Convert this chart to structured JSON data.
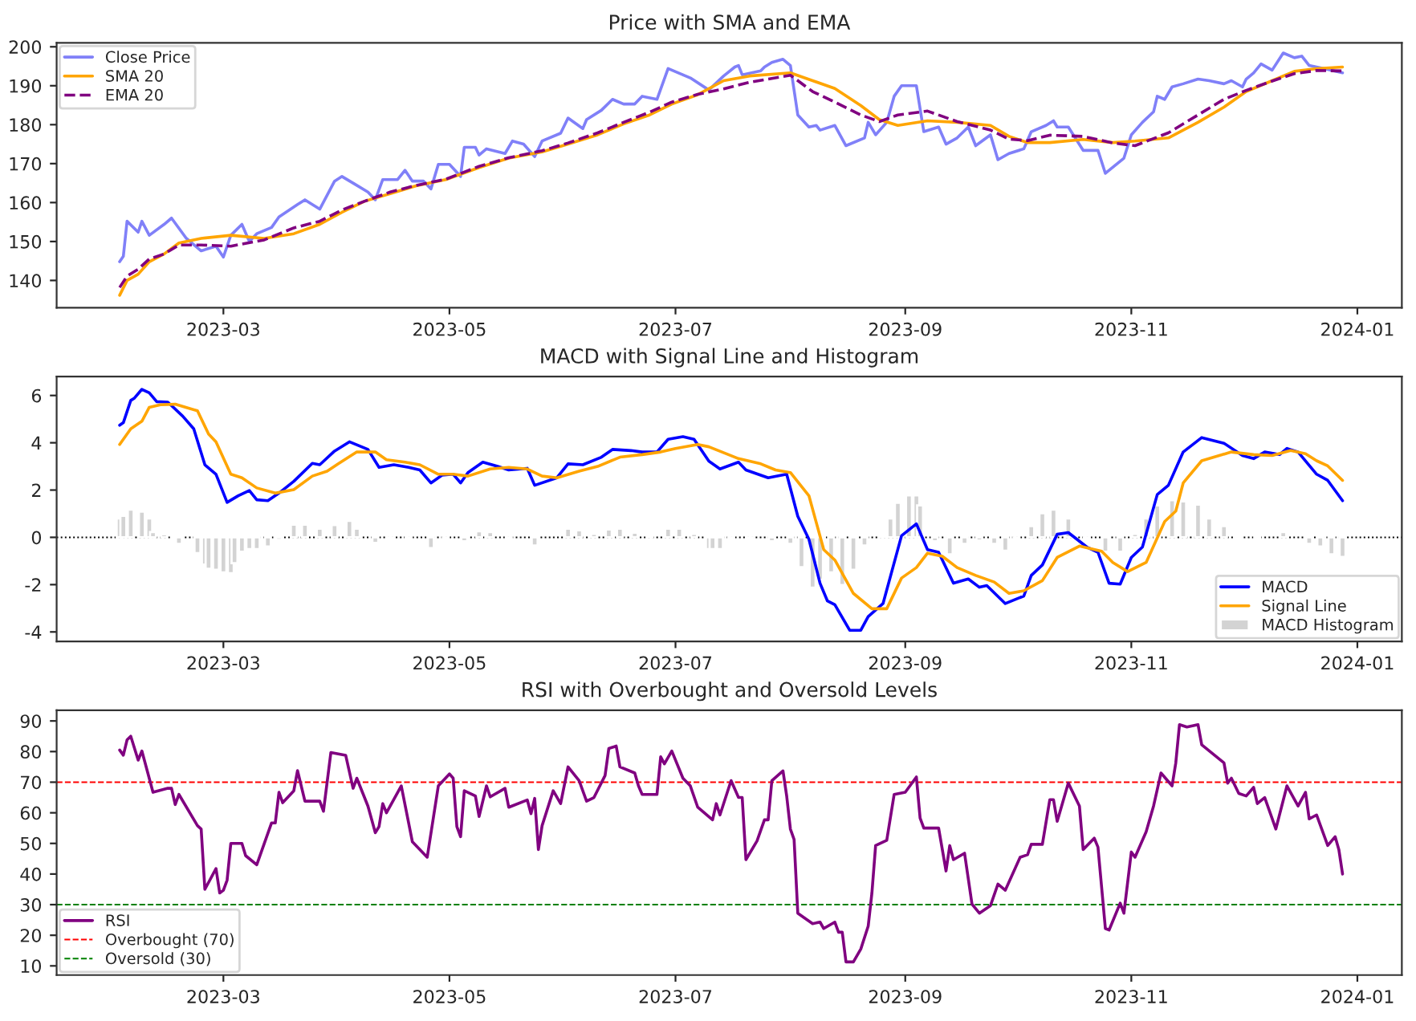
{
  "chart_data": [
    {
      "type": "line",
      "title": "Price with SMA and EMA",
      "legend": "top left",
      "grid": false,
      "xlim": [
        "2023-01-15",
        "2024-01-13"
      ],
      "xticks": [
        {
          "value": "2023-03-01",
          "label": "2023-03"
        },
        {
          "value": "2023-05-01",
          "label": "2023-05"
        },
        {
          "value": "2023-07-01",
          "label": "2023-07"
        },
        {
          "value": "2023-09-01",
          "label": "2023-09"
        },
        {
          "value": "2023-11-01",
          "label": "2023-11"
        },
        {
          "value": "2024-01-01",
          "label": "2024-01"
        }
      ],
      "ylim": [
        133,
        201
      ],
      "yticks": [
        140,
        150,
        160,
        170,
        180,
        190,
        200
      ],
      "series": [
        {
          "name": "Close Price",
          "color": "#8080f8",
          "line_style": "solid",
          "x": [
            "2023-02-01",
            "2023-02-02",
            "2023-02-03",
            "2023-02-06",
            "2023-02-07",
            "2023-02-09",
            "2023-02-13",
            "2023-02-15",
            "2023-02-19",
            "2023-02-23",
            "2023-02-27",
            "2023-03-01",
            "2023-03-03",
            "2023-03-06",
            "2023-03-08",
            "2023-03-10",
            "2023-03-14",
            "2023-03-16",
            "2023-03-21",
            "2023-03-23",
            "2023-03-27",
            "2023-03-31",
            "2023-04-02",
            "2023-04-05",
            "2023-04-09",
            "2023-04-11",
            "2023-04-13",
            "2023-04-17",
            "2023-04-19",
            "2023-04-21",
            "2023-04-24",
            "2023-04-26",
            "2023-04-28",
            "2023-05-01",
            "2023-05-04",
            "2023-05-05",
            "2023-05-08",
            "2023-05-09",
            "2023-05-11",
            "2023-05-16",
            "2023-05-18",
            "2023-05-21",
            "2023-05-24",
            "2023-05-26",
            "2023-05-31",
            "2023-06-02",
            "2023-06-06",
            "2023-06-07",
            "2023-06-11",
            "2023-06-14",
            "2023-06-17",
            "2023-06-20",
            "2023-06-22",
            "2023-06-26",
            "2023-06-29",
            "2023-07-05",
            "2023-07-10",
            "2023-07-14",
            "2023-07-17",
            "2023-07-18",
            "2023-07-19",
            "2023-07-24",
            "2023-07-25",
            "2023-07-27",
            "2023-07-30",
            "2023-08-01",
            "2023-08-03",
            "2023-08-06",
            "2023-08-08",
            "2023-08-09",
            "2023-08-13",
            "2023-08-16",
            "2023-08-21",
            "2023-08-22",
            "2023-08-24",
            "2023-08-27",
            "2023-08-29",
            "2023-08-31",
            "2023-09-04",
            "2023-09-06",
            "2023-09-10",
            "2023-09-12",
            "2023-09-15",
            "2023-09-18",
            "2023-09-20",
            "2023-09-24",
            "2023-09-26",
            "2023-09-29",
            "2023-10-03",
            "2023-10-05",
            "2023-10-09",
            "2023-10-11",
            "2023-10-12",
            "2023-10-15",
            "2023-10-19",
            "2023-10-23",
            "2023-10-25",
            "2023-10-30",
            "2023-11-01",
            "2023-11-04",
            "2023-11-07",
            "2023-11-08",
            "2023-11-10",
            "2023-11-12",
            "2023-11-15",
            "2023-11-19",
            "2023-11-22",
            "2023-11-26",
            "2023-11-28",
            "2023-12-01",
            "2023-12-02",
            "2023-12-04",
            "2023-12-06",
            "2023-12-09",
            "2023-12-12",
            "2023-12-15",
            "2023-12-17",
            "2023-12-19",
            "2023-12-23",
            "2023-12-28"
          ],
          "values": [
            144.8,
            146.2,
            155.2,
            152.4,
            155.2,
            151.6,
            154.4,
            156,
            150.8,
            147.6,
            148.8,
            146,
            151.6,
            154.4,
            150,
            152,
            153.6,
            156.3,
            159.5,
            160.7,
            158.3,
            165.5,
            166.7,
            165,
            162.7,
            160.7,
            165.9,
            165.9,
            168.3,
            165.5,
            165.5,
            163.5,
            169.8,
            169.8,
            166.7,
            174.2,
            174.2,
            172.2,
            173.8,
            172.6,
            175.8,
            175,
            171.8,
            175.8,
            177.8,
            181.7,
            179,
            181.3,
            183.7,
            186.5,
            185.3,
            185.3,
            187.3,
            186.5,
            194.4,
            192,
            188.9,
            192.5,
            194.8,
            195.2,
            192.8,
            193.8,
            194.8,
            196,
            196.8,
            195.2,
            182.5,
            179.4,
            179.8,
            178.6,
            179.8,
            174.6,
            176.6,
            180.6,
            177.4,
            180.6,
            187.3,
            190,
            190,
            178.2,
            179.4,
            175,
            176.6,
            179.4,
            174.6,
            177.4,
            171,
            172.6,
            173.8,
            178.2,
            179.8,
            181,
            179.4,
            179.4,
            173.4,
            173.4,
            167.5,
            171.4,
            177.4,
            180.6,
            183.3,
            187.3,
            186.5,
            189.7,
            190.5,
            191.7,
            191.3,
            190.5,
            191.3,
            189.7,
            191.7,
            193.3,
            195.6,
            194,
            198.4,
            197.2,
            197.6,
            195.2,
            194.4,
            193.3
          ]
        },
        {
          "name": "SMA 20",
          "color": "#ffa500",
          "line_style": "solid",
          "x": [
            "2023-02-01",
            "2023-02-03",
            "2023-02-06",
            "2023-02-09",
            "2023-02-13",
            "2023-02-17",
            "2023-02-23",
            "2023-03-03",
            "2023-03-12",
            "2023-03-20",
            "2023-03-27",
            "2023-04-02",
            "2023-04-08",
            "2023-04-15",
            "2023-04-22",
            "2023-04-30",
            "2023-05-09",
            "2023-05-17",
            "2023-05-26",
            "2023-06-02",
            "2023-06-10",
            "2023-06-17",
            "2023-06-24",
            "2023-06-30",
            "2023-07-07",
            "2023-07-14",
            "2023-07-21",
            "2023-08-01",
            "2023-08-07",
            "2023-08-13",
            "2023-08-20",
            "2023-08-25",
            "2023-08-30",
            "2023-09-07",
            "2023-09-15",
            "2023-09-24",
            "2023-09-29",
            "2023-10-04",
            "2023-10-10",
            "2023-10-19",
            "2023-10-27",
            "2023-11-02",
            "2023-11-11",
            "2023-11-19",
            "2023-11-26",
            "2023-12-02",
            "2023-12-09",
            "2023-12-15",
            "2023-12-21",
            "2023-12-28"
          ],
          "values": [
            136.2,
            140,
            141.6,
            144.8,
            146.8,
            149.6,
            150.8,
            151.6,
            150.8,
            152,
            154.4,
            157.5,
            160.3,
            162.3,
            164.3,
            165.9,
            169,
            171.4,
            173,
            175,
            177.4,
            180.2,
            182.5,
            185.3,
            187.7,
            191.3,
            192.5,
            193.3,
            191.3,
            189.3,
            184.9,
            181.3,
            179.8,
            181,
            180.6,
            179.8,
            177,
            175.4,
            175.4,
            176.2,
            175.4,
            175.8,
            176.6,
            180.6,
            184.5,
            188.5,
            191.3,
            193.7,
            194.4,
            194.8
          ]
        },
        {
          "name": "EMA 20",
          "color": "#800080",
          "line_style": "dashed",
          "x": [
            "2023-02-01",
            "2023-02-03",
            "2023-02-06",
            "2023-02-09",
            "2023-02-13",
            "2023-02-17",
            "2023-02-23",
            "2023-03-03",
            "2023-03-12",
            "2023-03-20",
            "2023-03-27",
            "2023-04-02",
            "2023-04-08",
            "2023-04-15",
            "2023-04-22",
            "2023-04-30",
            "2023-05-09",
            "2023-05-17",
            "2023-05-26",
            "2023-06-02",
            "2023-06-10",
            "2023-06-17",
            "2023-06-24",
            "2023-06-30",
            "2023-07-07",
            "2023-07-14",
            "2023-07-21",
            "2023-08-01",
            "2023-08-07",
            "2023-08-13",
            "2023-08-20",
            "2023-08-25",
            "2023-08-30",
            "2023-09-07",
            "2023-09-15",
            "2023-09-24",
            "2023-09-29",
            "2023-10-04",
            "2023-10-10",
            "2023-10-19",
            "2023-10-27",
            "2023-11-02",
            "2023-11-11",
            "2023-11-19",
            "2023-11-26",
            "2023-12-02",
            "2023-12-09",
            "2023-12-15",
            "2023-12-21",
            "2023-12-28"
          ],
          "values": [
            138.2,
            141.1,
            142.9,
            145.5,
            146.8,
            149.1,
            149.1,
            148.8,
            150.4,
            153.5,
            155.2,
            158.1,
            160.3,
            162.7,
            164.4,
            166,
            169.3,
            171.5,
            173.3,
            175.3,
            177.9,
            180.6,
            183.2,
            185.8,
            187.8,
            189.2,
            190.9,
            192.7,
            188.5,
            185.8,
            182.5,
            180.8,
            182.5,
            183.5,
            180.8,
            178.6,
            176.3,
            175.9,
            177.3,
            177,
            175.3,
            174.6,
            177.9,
            182.5,
            186.5,
            188.8,
            191.2,
            193.1,
            193.9,
            193.8
          ]
        }
      ]
    },
    {
      "type": "line",
      "title": "MACD with Signal Line and Histogram",
      "legend": "bottom right",
      "grid": false,
      "xlim": [
        "2023-01-15",
        "2024-01-13"
      ],
      "xticks": [
        {
          "value": "2023-03-01",
          "label": "2023-03"
        },
        {
          "value": "2023-05-01",
          "label": "2023-05"
        },
        {
          "value": "2023-07-01",
          "label": "2023-07"
        },
        {
          "value": "2023-09-01",
          "label": "2023-09"
        },
        {
          "value": "2023-11-01",
          "label": "2023-11"
        },
        {
          "value": "2024-01-01",
          "label": "2024-01"
        }
      ],
      "ylim": [
        -4.4,
        6.8
      ],
      "yticks": [
        -4,
        -2,
        0,
        2,
        4,
        6
      ],
      "ref_lines": [
        {
          "axis": "y",
          "value": 0,
          "color": "#000000",
          "line_style": "dotted"
        }
      ],
      "series": [
        {
          "name": "MACD",
          "color": "#0000ff",
          "line_style": "solid",
          "x": [
            "2023-02-01",
            "2023-02-02",
            "2023-02-04",
            "2023-02-05",
            "2023-02-07",
            "2023-02-09",
            "2023-02-11",
            "2023-02-14",
            "2023-02-18",
            "2023-02-21",
            "2023-02-24",
            "2023-02-27",
            "2023-03-02",
            "2023-03-05",
            "2023-03-08",
            "2023-03-10",
            "2023-03-13",
            "2023-03-16",
            "2023-03-20",
            "2023-03-25",
            "2023-03-27",
            "2023-03-31",
            "2023-04-04",
            "2023-04-09",
            "2023-04-12",
            "2023-04-16",
            "2023-04-20",
            "2023-04-23",
            "2023-04-26",
            "2023-04-29",
            "2023-05-02",
            "2023-05-04",
            "2023-05-06",
            "2023-05-10",
            "2023-05-14",
            "2023-05-17",
            "2023-05-22",
            "2023-05-24",
            "2023-05-30",
            "2023-06-02",
            "2023-06-06",
            "2023-06-11",
            "2023-06-14",
            "2023-06-19",
            "2023-06-22",
            "2023-06-26",
            "2023-06-29",
            "2023-07-03",
            "2023-07-06",
            "2023-07-10",
            "2023-07-13",
            "2023-07-18",
            "2023-07-20",
            "2023-07-26",
            "2023-07-31",
            "2023-08-03",
            "2023-08-06",
            "2023-08-09",
            "2023-08-11",
            "2023-08-13",
            "2023-08-17",
            "2023-08-20",
            "2023-08-22",
            "2023-08-26",
            "2023-08-31",
            "2023-09-04",
            "2023-09-07",
            "2023-09-10",
            "2023-09-14",
            "2023-09-18",
            "2023-09-21",
            "2023-09-23",
            "2023-09-28",
            "2023-10-03",
            "2023-10-05",
            "2023-10-08",
            "2023-10-12",
            "2023-10-15",
            "2023-10-20",
            "2023-10-23",
            "2023-10-26",
            "2023-10-29",
            "2023-11-01",
            "2023-11-04",
            "2023-11-08",
            "2023-11-11",
            "2023-11-15",
            "2023-11-20",
            "2023-11-26",
            "2023-12-01",
            "2023-12-04",
            "2023-12-07",
            "2023-12-11",
            "2023-12-13",
            "2023-12-16",
            "2023-12-21",
            "2023-12-24",
            "2023-12-28"
          ],
          "values": [
            4.74,
            4.85,
            5.79,
            5.89,
            6.26,
            6.11,
            5.74,
            5.72,
            5.13,
            4.59,
            3.07,
            2.67,
            1.48,
            1.76,
            1.98,
            1.59,
            1.55,
            1.87,
            2.37,
            3.13,
            3.07,
            3.65,
            4.04,
            3.72,
            2.96,
            3.07,
            2.96,
            2.85,
            2.3,
            2.63,
            2.67,
            2.3,
            2.74,
            3.18,
            3.0,
            2.85,
            2.92,
            2.2,
            2.52,
            3.11,
            3.07,
            3.39,
            3.72,
            3.67,
            3.61,
            3.61,
            4.15,
            4.26,
            4.15,
            3.22,
            2.89,
            3.18,
            2.85,
            2.52,
            2.67,
            0.89,
            -0.08,
            -1.94,
            -2.69,
            -2.85,
            -3.93,
            -3.93,
            -3.35,
            -2.8,
            0.07,
            0.57,
            -0.52,
            -0.63,
            -1.94,
            -1.76,
            -2.11,
            -2.04,
            -2.8,
            -2.48,
            -1.61,
            -1.17,
            0.13,
            0.2,
            -0.41,
            -0.63,
            -1.94,
            -1.98,
            -0.85,
            -0.41,
            1.81,
            2.2,
            3.61,
            4.22,
            3.98,
            3.46,
            3.33,
            3.61,
            3.5,
            3.76,
            3.61,
            2.67,
            2.41,
            1.55
          ]
        },
        {
          "name": "Signal Line",
          "color": "#ffa500",
          "line_style": "solid",
          "x": [
            "2023-02-01",
            "2023-02-04",
            "2023-02-07",
            "2023-02-09",
            "2023-02-12",
            "2023-02-16",
            "2023-02-22",
            "2023-02-25",
            "2023-02-27",
            "2023-03-03",
            "2023-03-06",
            "2023-03-10",
            "2023-03-15",
            "2023-03-20",
            "2023-03-25",
            "2023-03-29",
            "2023-04-01",
            "2023-04-06",
            "2023-04-11",
            "2023-04-14",
            "2023-04-19",
            "2023-04-23",
            "2023-04-28",
            "2023-05-02",
            "2023-05-06",
            "2023-05-12",
            "2023-05-17",
            "2023-05-22",
            "2023-05-26",
            "2023-05-30",
            "2023-06-05",
            "2023-06-10",
            "2023-06-16",
            "2023-06-22",
            "2023-06-27",
            "2023-07-01",
            "2023-07-07",
            "2023-07-10",
            "2023-07-18",
            "2023-07-24",
            "2023-07-28",
            "2023-08-01",
            "2023-08-06",
            "2023-08-10",
            "2023-08-13",
            "2023-08-18",
            "2023-08-23",
            "2023-08-27",
            "2023-08-31",
            "2023-09-04",
            "2023-09-07",
            "2023-09-11",
            "2023-09-15",
            "2023-09-20",
            "2023-09-25",
            "2023-09-29",
            "2023-10-03",
            "2023-10-08",
            "2023-10-12",
            "2023-10-18",
            "2023-10-24",
            "2023-10-27",
            "2023-10-31",
            "2023-11-05",
            "2023-11-10",
            "2023-11-13",
            "2023-11-15",
            "2023-11-20",
            "2023-11-28",
            "2023-12-04",
            "2023-12-09",
            "2023-12-14",
            "2023-12-18",
            "2023-12-21",
            "2023-12-24",
            "2023-12-28"
          ],
          "values": [
            3.93,
            4.59,
            4.91,
            5.5,
            5.61,
            5.63,
            5.35,
            4.37,
            4.04,
            2.67,
            2.52,
            2.09,
            1.87,
            2.02,
            2.59,
            2.8,
            3.11,
            3.61,
            3.61,
            3.28,
            3.18,
            3.07,
            2.67,
            2.67,
            2.59,
            2.89,
            2.96,
            2.89,
            2.59,
            2.52,
            2.8,
            3.0,
            3.39,
            3.5,
            3.61,
            3.76,
            3.93,
            3.83,
            3.33,
            3.11,
            2.85,
            2.74,
            1.76,
            -0.52,
            -0.96,
            -2.37,
            -3.02,
            -3.02,
            -1.72,
            -1.28,
            -0.67,
            -0.8,
            -1.28,
            -1.61,
            -1.89,
            -2.37,
            -2.26,
            -1.83,
            -0.85,
            -0.37,
            -0.59,
            -1.06,
            -1.45,
            -1.06,
            0.67,
            1.11,
            2.3,
            3.24,
            3.61,
            3.5,
            3.46,
            3.67,
            3.54,
            3.24,
            3.02,
            2.41
          ]
        },
        {
          "name": "MACD Histogram",
          "type": "bar",
          "color": "#d3d3d3",
          "x": [
            "2023-02-01",
            "2023-02-02",
            "2023-02-04",
            "2023-02-07",
            "2023-02-09",
            "2023-02-10",
            "2023-02-13",
            "2023-02-16",
            "2023-02-17",
            "2023-02-22",
            "2023-02-24",
            "2023-02-25",
            "2023-02-27",
            "2023-03-01",
            "2023-03-03",
            "2023-03-04",
            "2023-03-06",
            "2023-03-08",
            "2023-03-10",
            "2023-03-13",
            "2023-03-16",
            "2023-03-20",
            "2023-03-23",
            "2023-03-27",
            "2023-03-31",
            "2023-04-04",
            "2023-04-06",
            "2023-04-11",
            "2023-04-15",
            "2023-04-20",
            "2023-04-26",
            "2023-04-30",
            "2023-05-05",
            "2023-05-09",
            "2023-05-12",
            "2023-05-17",
            "2023-05-24",
            "2023-06-02",
            "2023-06-05",
            "2023-06-09",
            "2023-06-13",
            "2023-06-16",
            "2023-06-20",
            "2023-06-24",
            "2023-06-29",
            "2023-07-02",
            "2023-07-06",
            "2023-07-10",
            "2023-07-11",
            "2023-07-13",
            "2023-07-16",
            "2023-07-21",
            "2023-07-27",
            "2023-08-01",
            "2023-08-04",
            "2023-08-07",
            "2023-08-09",
            "2023-08-12",
            "2023-08-15",
            "2023-08-18",
            "2023-08-21",
            "2023-08-26",
            "2023-08-28",
            "2023-08-30",
            "2023-09-02",
            "2023-09-04",
            "2023-09-05",
            "2023-09-09",
            "2023-09-13",
            "2023-09-17",
            "2023-09-21",
            "2023-09-25",
            "2023-09-28",
            "2023-10-01",
            "2023-10-05",
            "2023-10-08",
            "2023-10-11",
            "2023-10-15",
            "2023-10-20",
            "2023-10-25",
            "2023-10-29",
            "2023-11-02",
            "2023-11-05",
            "2023-11-08",
            "2023-11-12",
            "2023-11-15",
            "2023-11-19",
            "2023-11-22",
            "2023-11-26",
            "2023-11-30",
            "2023-12-05",
            "2023-12-12",
            "2023-12-19",
            "2023-12-22",
            "2023-12-25",
            "2023-12-28"
          ],
          "values": [
            0.8,
            0.91,
            1.17,
            1.09,
            0.8,
            0.22,
            0.13,
            -0.07,
            -0.28,
            -0.67,
            -1.15,
            -1.33,
            -1.37,
            -1.48,
            -1.52,
            -1.09,
            -0.61,
            -0.5,
            -0.5,
            -0.39,
            -0.11,
            0.54,
            0.54,
            0.37,
            0.52,
            0.7,
            0.37,
            -0.24,
            -0.07,
            -0.07,
            -0.46,
            -0.07,
            -0.17,
            0.26,
            0.22,
            -0.07,
            -0.35,
            0.37,
            0.3,
            0.15,
            0.33,
            0.37,
            0.2,
            0.04,
            0.37,
            0.37,
            0.15,
            -0.5,
            -0.5,
            -0.5,
            -0.07,
            -0.07,
            -0.17,
            -0.28,
            -1.26,
            -2.13,
            -1.8,
            -1.48,
            -2.02,
            -1.37,
            -0.35,
            0.04,
            0.8,
            1.46,
            1.78,
            1.78,
            1.35,
            -0.17,
            -0.72,
            -0.28,
            -0.13,
            -0.28,
            -0.57,
            -0.07,
            0.48,
            1.02,
            1.17,
            0.8,
            -0.07,
            -0.61,
            -0.61,
            0.15,
            0.8,
            1.35,
            1.57,
            1.52,
            1.39,
            0.8,
            0.48,
            -0.07,
            -0.02,
            0.22,
            -0.28,
            -0.39,
            -0.72,
            -0.83
          ]
        }
      ]
    },
    {
      "type": "line",
      "title": "RSI with Overbought and Oversold Levels",
      "legend": "bottom left",
      "grid": false,
      "xlim": [
        "2023-01-15",
        "2024-01-13"
      ],
      "xticks": [
        {
          "value": "2023-03-01",
          "label": "2023-03"
        },
        {
          "value": "2023-05-01",
          "label": "2023-05"
        },
        {
          "value": "2023-07-01",
          "label": "2023-07"
        },
        {
          "value": "2023-09-01",
          "label": "2023-09"
        },
        {
          "value": "2023-11-01",
          "label": "2023-11"
        },
        {
          "value": "2024-01-01",
          "label": "2024-01"
        }
      ],
      "ylim": [
        7,
        93.5
      ],
      "yticks": [
        10,
        20,
        30,
        40,
        50,
        60,
        70,
        80,
        90
      ],
      "ref_lines": [
        {
          "axis": "y",
          "value": 70,
          "label": "Overbought (70)",
          "color": "#ff0000",
          "line_style": "dashed"
        },
        {
          "axis": "y",
          "value": 30,
          "label": "Oversold (30)",
          "color": "#008000",
          "line_style": "dashed"
        }
      ],
      "series": [
        {
          "name": "RSI",
          "color": "#800080",
          "line_style": "solid",
          "x": [
            "2023-02-01",
            "2023-02-02",
            "2023-02-03",
            "2023-02-04",
            "2023-02-06",
            "2023-02-07",
            "2023-02-10",
            "2023-02-14",
            "2023-02-15",
            "2023-02-16",
            "2023-02-17",
            "2023-02-22",
            "2023-02-23",
            "2023-02-24",
            "2023-02-27",
            "2023-02-28",
            "2023-03-01",
            "2023-03-02",
            "2023-03-03",
            "2023-03-06",
            "2023-03-07",
            "2023-03-10",
            "2023-03-14",
            "2023-03-15",
            "2023-03-16",
            "2023-03-17",
            "2023-03-20",
            "2023-03-21",
            "2023-03-23",
            "2023-03-27",
            "2023-03-28",
            "2023-03-30",
            "2023-04-03",
            "2023-04-05",
            "2023-04-06",
            "2023-04-09",
            "2023-04-11",
            "2023-04-12",
            "2023-04-13",
            "2023-04-14",
            "2023-04-18",
            "2023-04-21",
            "2023-04-25",
            "2023-04-28",
            "2023-05-01",
            "2023-05-02",
            "2023-05-03",
            "2023-05-04",
            "2023-05-05",
            "2023-05-08",
            "2023-05-09",
            "2023-05-11",
            "2023-05-12",
            "2023-05-16",
            "2023-05-17",
            "2023-05-22",
            "2023-05-23",
            "2023-05-24",
            "2023-05-25",
            "2023-05-26",
            "2023-05-29",
            "2023-05-31",
            "2023-06-02",
            "2023-06-05",
            "2023-06-07",
            "2023-06-09",
            "2023-06-12",
            "2023-06-13",
            "2023-06-15",
            "2023-06-16",
            "2023-06-20",
            "2023-06-21",
            "2023-06-22",
            "2023-06-26",
            "2023-06-27",
            "2023-06-28",
            "2023-06-30",
            "2023-07-03",
            "2023-07-05",
            "2023-07-07",
            "2023-07-11",
            "2023-07-12",
            "2023-07-13",
            "2023-07-16",
            "2023-07-18",
            "2023-07-19",
            "2023-07-20",
            "2023-07-23",
            "2023-07-25",
            "2023-07-26",
            "2023-07-27",
            "2023-07-30",
            "2023-07-31",
            "2023-08-01",
            "2023-08-02",
            "2023-08-03",
            "2023-08-07",
            "2023-08-09",
            "2023-08-10",
            "2023-08-13",
            "2023-08-14",
            "2023-08-15",
            "2023-08-16",
            "2023-08-18",
            "2023-08-20",
            "2023-08-22",
            "2023-08-23",
            "2023-08-24",
            "2023-08-27",
            "2023-08-29",
            "2023-09-01",
            "2023-09-04",
            "2023-09-05",
            "2023-09-06",
            "2023-09-10",
            "2023-09-12",
            "2023-09-13",
            "2023-09-14",
            "2023-09-17",
            "2023-09-19",
            "2023-09-21",
            "2023-09-24",
            "2023-09-26",
            "2023-09-28",
            "2023-10-02",
            "2023-10-04",
            "2023-10-05",
            "2023-10-08",
            "2023-10-10",
            "2023-10-11",
            "2023-10-12",
            "2023-10-15",
            "2023-10-18",
            "2023-10-19",
            "2023-10-22",
            "2023-10-23",
            "2023-10-25",
            "2023-10-26",
            "2023-10-29",
            "2023-10-30",
            "2023-11-01",
            "2023-11-02",
            "2023-11-05",
            "2023-11-07",
            "2023-11-09",
            "2023-11-12",
            "2023-11-13",
            "2023-11-14",
            "2023-11-16",
            "2023-11-19",
            "2023-11-20",
            "2023-11-26",
            "2023-11-27",
            "2023-11-28",
            "2023-11-30",
            "2023-12-02",
            "2023-12-04",
            "2023-12-05",
            "2023-12-07",
            "2023-12-10",
            "2023-12-13",
            "2023-12-16",
            "2023-12-18",
            "2023-12-19",
            "2023-12-21",
            "2023-12-24",
            "2023-12-26",
            "2023-12-27",
            "2023-12-28"
          ],
          "values": [
            80.5,
            78.8,
            83.8,
            85,
            77.2,
            80.2,
            66.7,
            68,
            68,
            62.7,
            66,
            55.8,
            54.7,
            35,
            41.8,
            33.8,
            34.7,
            38,
            50,
            50,
            46,
            43,
            56.7,
            56.7,
            66.7,
            63.3,
            67.2,
            73.8,
            63.8,
            63.8,
            60.5,
            79.7,
            78.8,
            68,
            71.3,
            62.2,
            53.5,
            55.5,
            63,
            60,
            68.8,
            50.5,
            45.5,
            68.8,
            72.7,
            71.3,
            55.5,
            52.2,
            67.2,
            65.5,
            58.8,
            68.8,
            65.2,
            68,
            61.8,
            64.2,
            59.7,
            64.7,
            48,
            55.8,
            67.2,
            63,
            75,
            70.5,
            63.8,
            65,
            72.2,
            81,
            81.8,
            75,
            73,
            68.8,
            66,
            66,
            78.3,
            76,
            80.2,
            71.3,
            68.8,
            61.8,
            57.7,
            63,
            59.3,
            70.5,
            65,
            65,
            44.7,
            50.8,
            57.7,
            57.7,
            70.5,
            73.7,
            65.5,
            54.7,
            51.3,
            27.2,
            23.8,
            24.3,
            22.2,
            24.3,
            21,
            21,
            11.3,
            11.3,
            15.5,
            23,
            33.8,
            49.3,
            51,
            66,
            66.7,
            71.7,
            58.3,
            55,
            55,
            41,
            49.3,
            44.7,
            46.8,
            30.2,
            27.2,
            29.7,
            36.7,
            34.7,
            45.5,
            46.3,
            49.7,
            49.7,
            64.3,
            64.3,
            57.2,
            69.7,
            62.2,
            48,
            51.7,
            48.8,
            22.2,
            21.7,
            30.5,
            27.2,
            47.2,
            45.5,
            53.8,
            62.2,
            73,
            68.8,
            76.3,
            88.8,
            88,
            88.8,
            82.2,
            76.3,
            69.7,
            71.3,
            66.3,
            65.5,
            68.3,
            63,
            65,
            54.7,
            68.8,
            62.2,
            66.7,
            58,
            59.3,
            49.3,
            52.2,
            48,
            40
          ]
        }
      ]
    }
  ]
}
